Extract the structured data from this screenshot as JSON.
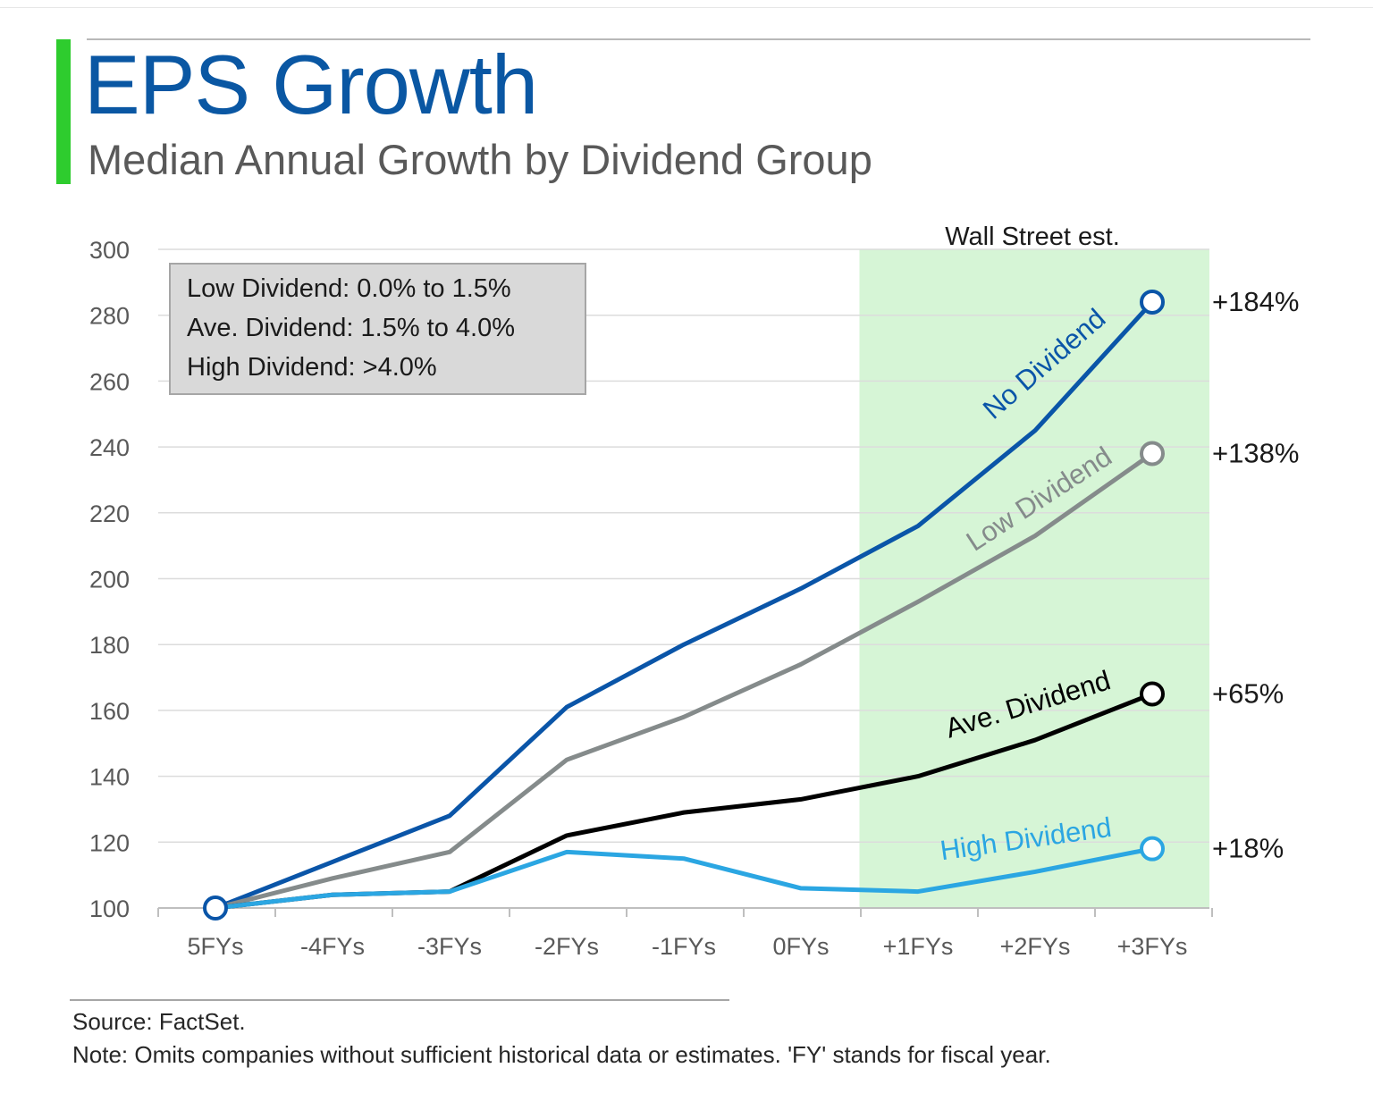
{
  "header": {
    "title": "EPS Growth",
    "subtitle": "Median Annual Growth by Dividend Group"
  },
  "chart_data": {
    "type": "line",
    "title": "EPS Growth",
    "subtitle": "Median Annual Growth by Dividend Group",
    "xlabel": "",
    "ylabel": "",
    "categories": [
      "5FYs",
      "-4FYs",
      "-3FYs",
      "-2FYs",
      "-1FYs",
      "0FYs",
      "+1FYs",
      "+2FYs",
      "+3FYs"
    ],
    "ylim": [
      100,
      300
    ],
    "yticks": [
      100,
      120,
      140,
      160,
      180,
      200,
      220,
      240,
      260,
      280,
      300
    ],
    "grid": true,
    "shaded_region": {
      "from": "+1FYs",
      "to": "+3FYs",
      "label": "Wall Street est.",
      "color": "#d6f5d6"
    },
    "legend_box": {
      "lines": [
        "Low Dividend: 0.0% to 1.5%",
        "Ave. Dividend: 1.5% to 4.0%",
        "High Dividend: >4.0%"
      ],
      "placement": "top-left"
    },
    "series": [
      {
        "name": "No Dividend",
        "color": "#0a55a8",
        "values": [
          100,
          114,
          128,
          161,
          180,
          197,
          216,
          245,
          284
        ],
        "end_label": "+184%"
      },
      {
        "name": "Low Dividend",
        "color": "#858b8b",
        "values": [
          100,
          109,
          117,
          145,
          158,
          174,
          193,
          213,
          238
        ],
        "end_label": "+138%"
      },
      {
        "name": "Ave. Dividend",
        "color": "#000000",
        "values": [
          100,
          104,
          105,
          122,
          129,
          133,
          140,
          151,
          165
        ],
        "end_label": "+65%"
      },
      {
        "name": "High Dividend",
        "color": "#2ba6e2",
        "values": [
          100,
          104,
          105,
          117,
          115,
          106,
          105,
          111,
          118
        ],
        "end_label": "+18%"
      }
    ]
  },
  "footer": {
    "source": "Source: FactSet.",
    "note": "Note: Omits companies without sufficient historical data or estimates. 'FY' stands for fiscal year."
  }
}
